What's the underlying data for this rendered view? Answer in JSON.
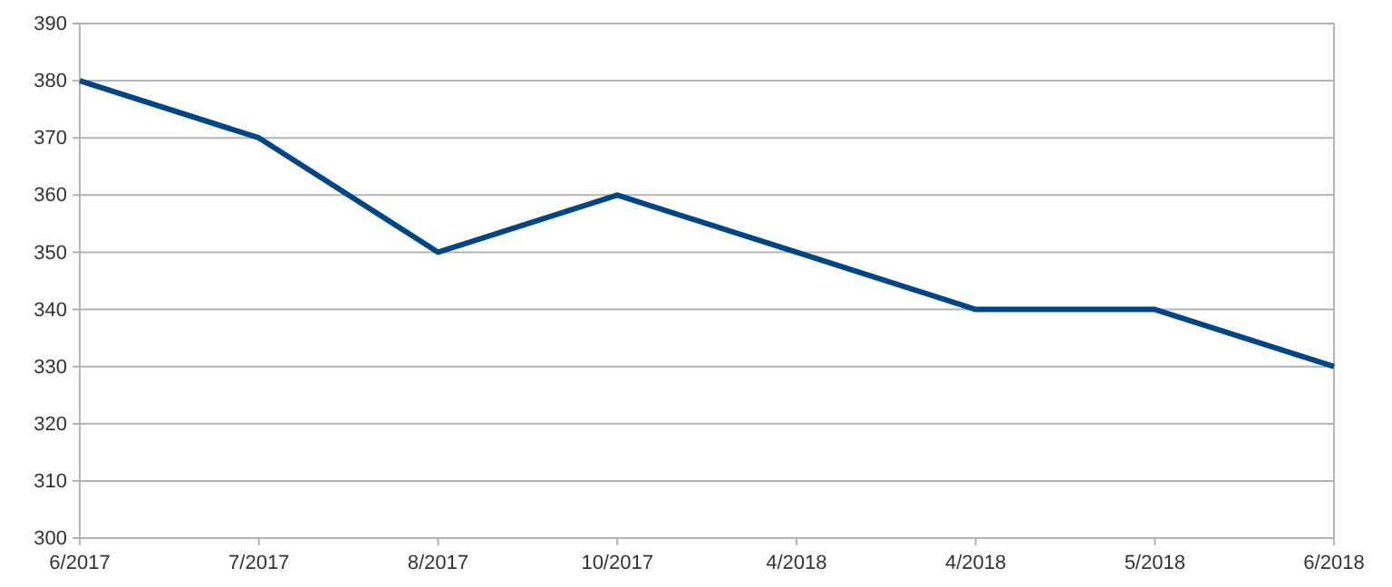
{
  "chart_data": {
    "type": "line",
    "categories": [
      "6/2017",
      "7/2017",
      "8/2017",
      "10/2017",
      "4/2018",
      "4/2018",
      "5/2018",
      "6/2018"
    ],
    "series": [
      {
        "color": "#004586",
        "values": [
          380,
          370,
          350,
          360,
          350,
          340,
          340,
          330
        ]
      }
    ],
    "ylim": [
      300,
      390
    ],
    "yticks": [
      300,
      310,
      320,
      330,
      340,
      350,
      360,
      370,
      380,
      390
    ],
    "grid": "y",
    "legend": false,
    "marker": "none",
    "line_style": "solid"
  }
}
